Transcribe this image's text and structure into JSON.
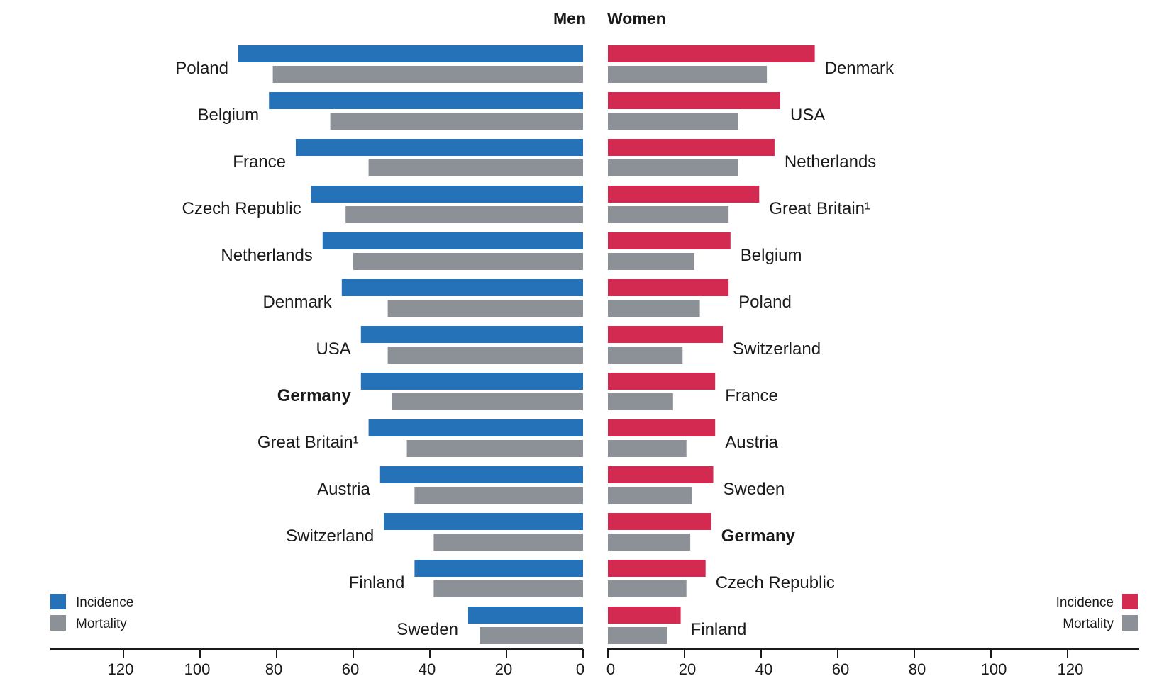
{
  "chart_data": [
    {
      "type": "bar",
      "orientation": "horizontal",
      "direction": "left",
      "title": "Men",
      "categories": [
        "Poland",
        "Belgium",
        "France",
        "Czech Republic",
        "Netherlands",
        "Denmark",
        "USA",
        "Germany",
        "Great Britain¹",
        "Austria",
        "Switzerland",
        "Finland",
        "Sweden"
      ],
      "highlight": "Germany",
      "series": [
        {
          "name": "Incidence",
          "color": "#2672b8",
          "values": [
            90,
            82,
            75,
            71,
            68,
            63,
            58,
            58,
            56,
            53,
            52,
            44,
            30
          ]
        },
        {
          "name": "Mortality",
          "color": "#8c9097",
          "values": [
            81,
            66,
            56,
            62,
            60,
            51,
            51,
            50,
            46,
            44,
            39,
            39,
            27
          ]
        }
      ],
      "xlim": [
        0,
        135
      ],
      "xticks": [
        0,
        20,
        40,
        60,
        80,
        100,
        120
      ],
      "legend": {
        "position": "bottom-left",
        "items": [
          "Incidence",
          "Mortality"
        ]
      }
    },
    {
      "type": "bar",
      "orientation": "horizontal",
      "direction": "right",
      "title": "Women",
      "categories": [
        "Denmark",
        "USA",
        "Netherlands",
        "Great Britain¹",
        "Belgium",
        "Poland",
        "Switzerland",
        "France",
        "Austria",
        "Sweden",
        "Germany",
        "Czech Republic",
        "Finland"
      ],
      "highlight": "Germany",
      "series": [
        {
          "name": "Incidence",
          "color": "#d22a50",
          "values": [
            54,
            45,
            43.5,
            39.5,
            32,
            31.5,
            30,
            28,
            28,
            27.5,
            27,
            25.5,
            19
          ]
        },
        {
          "name": "Mortality",
          "color": "#8c9097",
          "values": [
            41.5,
            34,
            34,
            31.5,
            22.5,
            24,
            19.5,
            17,
            20.5,
            22,
            21.5,
            20.5,
            15.5
          ]
        }
      ],
      "xlim": [
        0,
        140
      ],
      "xticks": [
        0,
        20,
        40,
        60,
        80,
        100,
        120
      ],
      "legend": {
        "position": "bottom-right",
        "items": [
          "Incidence",
          "Mortality"
        ]
      }
    }
  ]
}
